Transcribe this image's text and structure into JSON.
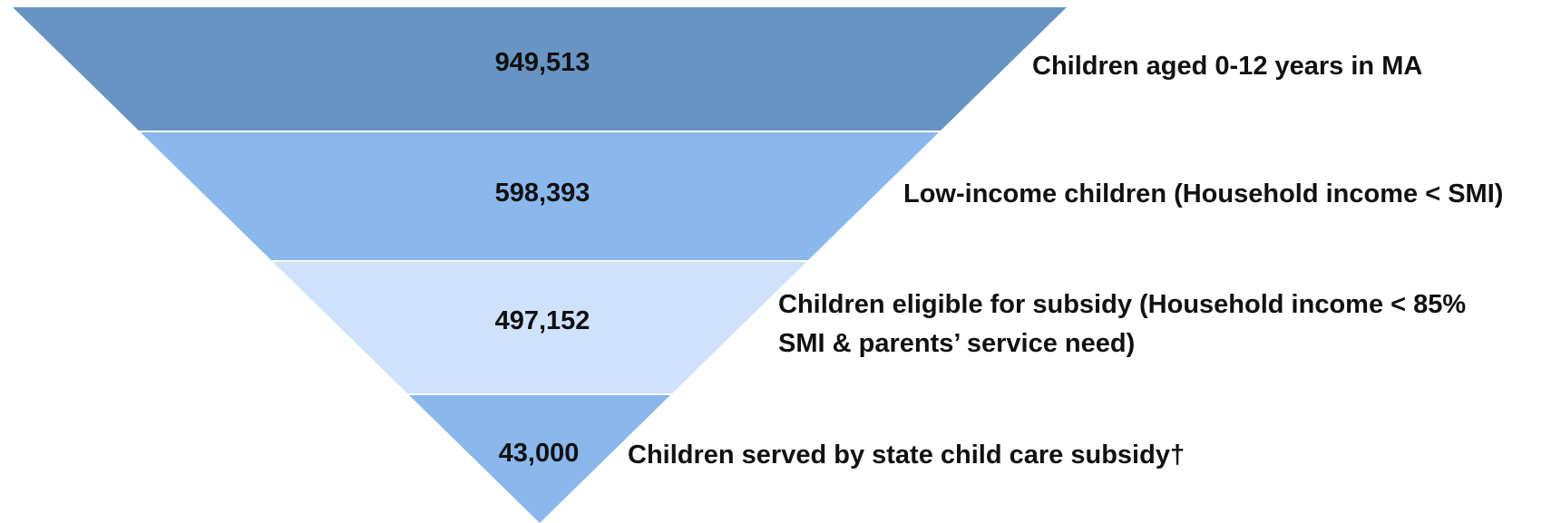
{
  "chart_data": {
    "type": "funnel",
    "stages": [
      {
        "value": 949513,
        "value_label": "949,513",
        "label": [
          "Children aged 0-12 years in MA"
        ],
        "color": "#6794c3"
      },
      {
        "value": 598393,
        "value_label": "598,393",
        "label": [
          "Low-income children (Household income < SMI)"
        ],
        "color": "#8ab8ed"
      },
      {
        "value": 497152,
        "value_label": "497,152",
        "label": [
          "Children eligible for subsidy (Household income < 85%",
          "SMI & parents’ service need)"
        ],
        "color": "#cfe2fc"
      },
      {
        "value": 43000,
        "value_label": "43,000",
        "label": [
          "Children served by state child care subsidy†"
        ],
        "color": "#8ab8ed"
      }
    ]
  }
}
